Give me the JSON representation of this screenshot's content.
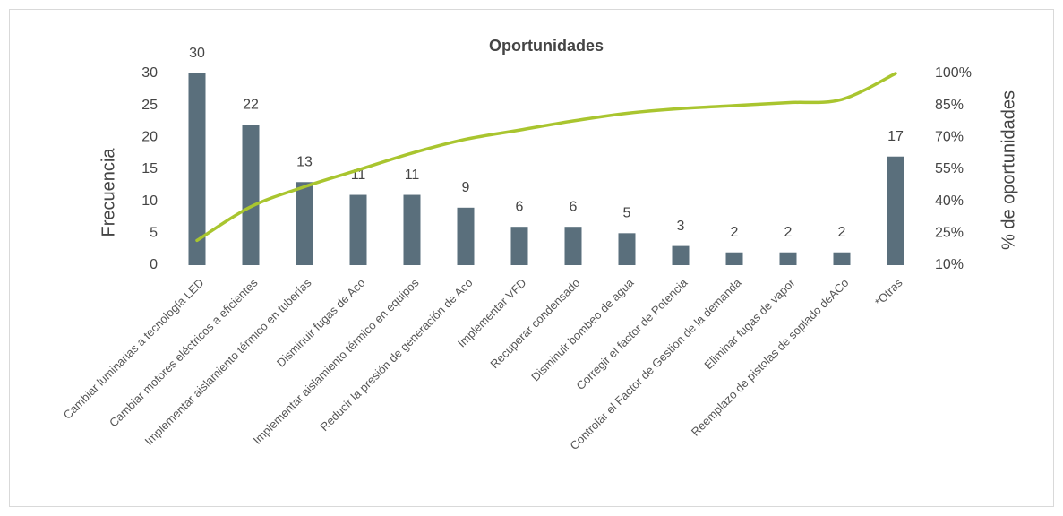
{
  "chart_data": {
    "type": "pareto",
    "title": "Oportunidades",
    "y_label": "Frecuencia",
    "y2_label": "% de oportunidades",
    "categories": [
      "Cambiar luminarias a tecnología LED",
      "Cambiar motores eléctricos a eficientes",
      "Implementar aislamiento térmico en tuberías",
      "Disminuir fugas de Aco",
      "Implementar aislamiento térmico en equipos",
      "Reducir la presión de generación de Aco",
      "Implementar VFD",
      "Recuperar condensado",
      "Disminuir bombeo de agua",
      "Corregir el factor de Potencia",
      "Controlar el Factor de Gestión de la demanda",
      "Eliminar fugas de vapor",
      "Reemplazo de pistolas de soplado deACo",
      "*Otras"
    ],
    "series": [
      {
        "type": "bar",
        "color": "#5a6f7c",
        "values": [
          30,
          22,
          13,
          11,
          11,
          9,
          6,
          6,
          5,
          3,
          2,
          2,
          2,
          17
        ]
      },
      {
        "type": "line",
        "axis": "y2",
        "color": "#a9c52f",
        "values": [
          21.6,
          37.4,
          46.8,
          54.7,
          62.6,
          69.1,
          73.4,
          77.7,
          81.3,
          83.5,
          84.9,
          86.3,
          87.8,
          100
        ]
      }
    ],
    "ylim": [
      0,
      30
    ],
    "yticks": [
      0,
      5,
      10,
      15,
      20,
      25,
      30
    ],
    "y2lim": [
      10,
      100
    ],
    "y2ticks": [
      {
        "value": 10,
        "label": "10%"
      },
      {
        "value": 25,
        "label": "25%"
      },
      {
        "value": 40,
        "label": "40%"
      },
      {
        "value": 55,
        "label": "55%"
      },
      {
        "value": 70,
        "label": "70%"
      },
      {
        "value": 85,
        "label": "85%"
      },
      {
        "value": 100,
        "label": "100%"
      }
    ],
    "grid": false
  }
}
